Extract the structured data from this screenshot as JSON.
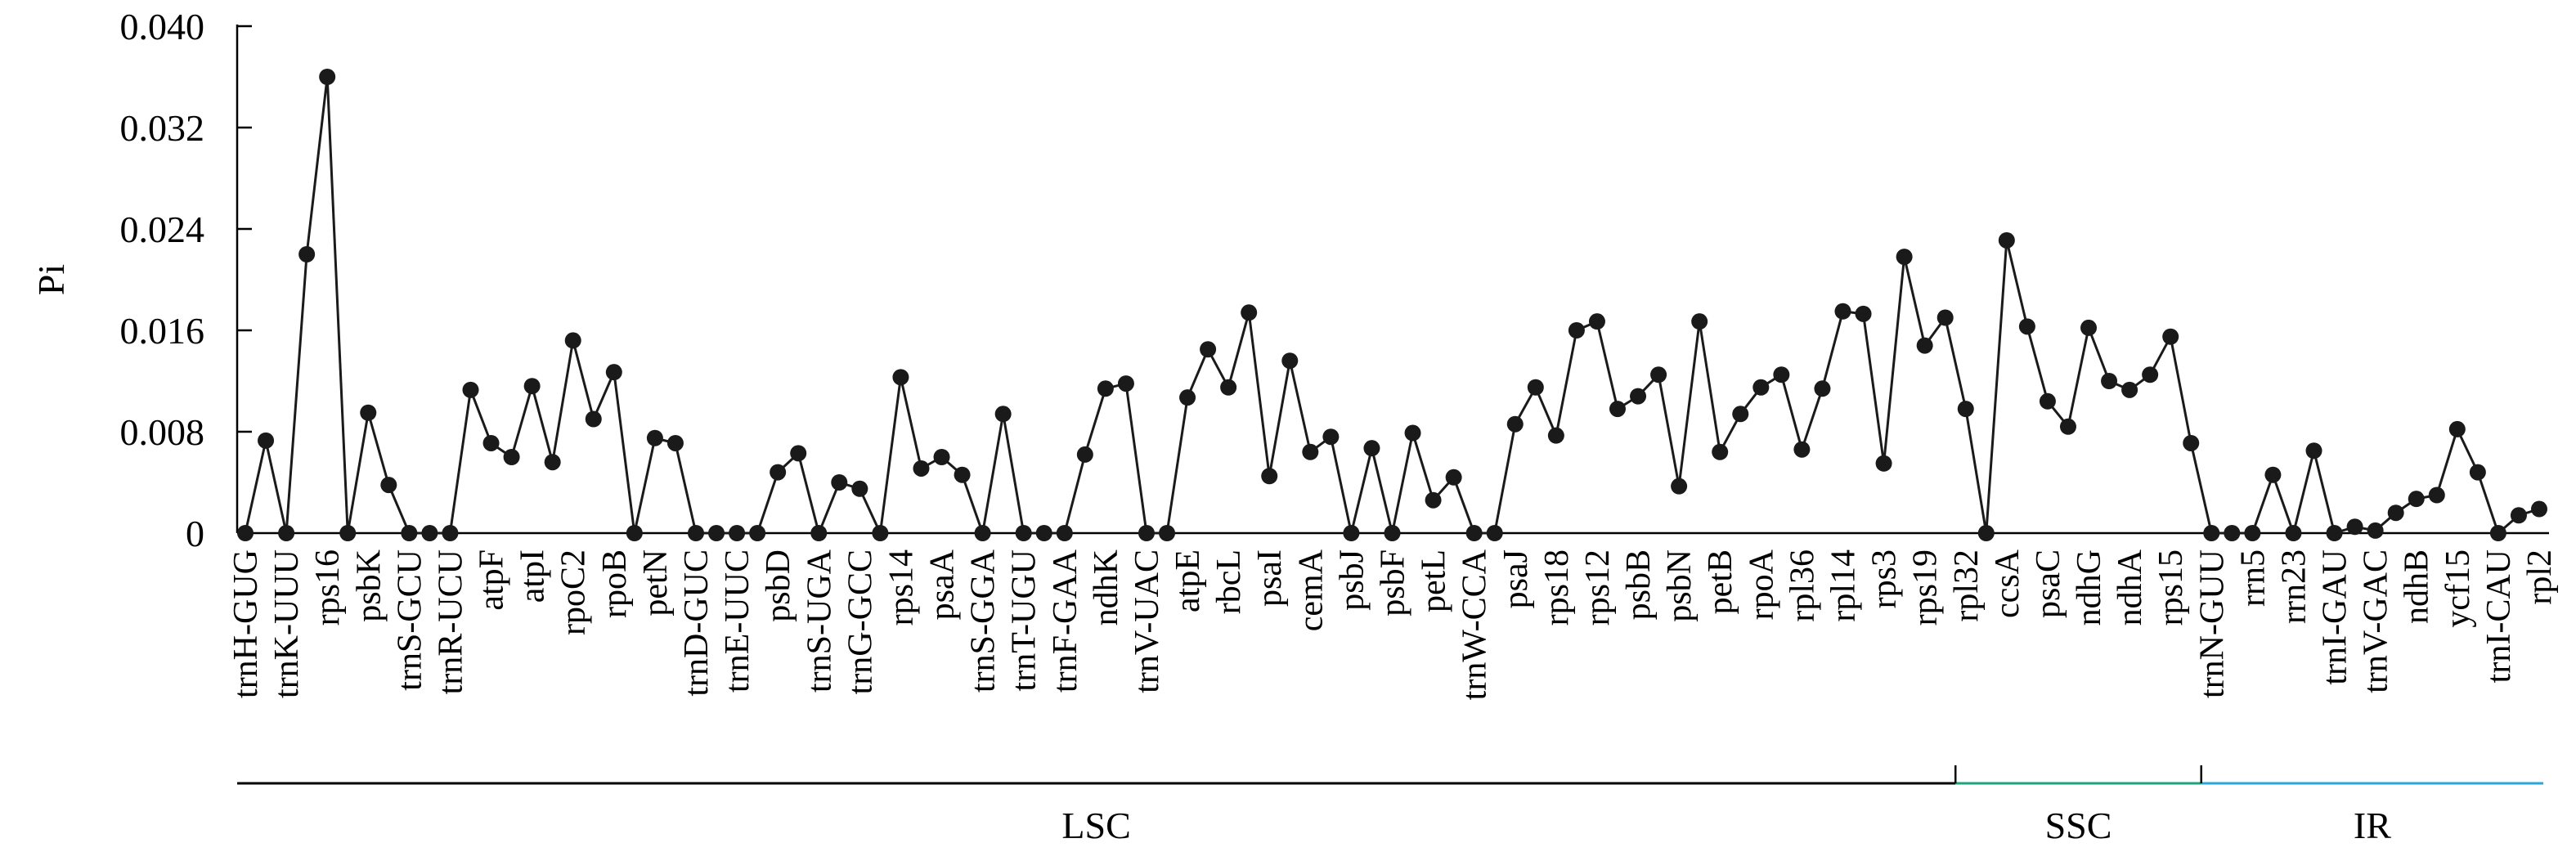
{
  "chart_data": {
    "type": "line",
    "title": "",
    "ylabel": "Pi",
    "xlabel": "",
    "ylim": [
      0,
      0.04
    ],
    "yticks": [
      "0",
      "0.008",
      "0.016",
      "0.024",
      "0.032",
      "0.040"
    ],
    "ytick_values": [
      0,
      0.008,
      0.016,
      0.024,
      0.032,
      0.04
    ],
    "grid": false,
    "legend": "none",
    "line_color": "#1a1a1a",
    "marker_color": "#1a1a1a",
    "categories": [
      "trnH-GUG",
      "",
      "trnK-UUU",
      "",
      "rps16",
      "",
      "psbK",
      "",
      "trnS-GCU",
      "",
      "trnR-UCU",
      "",
      "atpF",
      "",
      "atpI",
      "",
      "rpoC2",
      "",
      "rpoB",
      "",
      "petN",
      "",
      "trnD-GUC",
      "",
      "trnE-UUC",
      "",
      "psbD",
      "",
      "trnS-UGA",
      "",
      "trnG-GCC",
      "",
      "rps14",
      "",
      "psaA",
      "",
      "trnS-GGA",
      "",
      "trnT-UGU",
      "",
      "trnF-GAA",
      "",
      "ndhK",
      "",
      "trnV-UAC",
      "",
      "atpE",
      "",
      "rbcL",
      "",
      "psaI",
      "",
      "cemA",
      "",
      "psbJ",
      "",
      "psbF",
      "",
      "petL",
      "",
      "trnW-CCA",
      "",
      "psaJ",
      "",
      "rps18",
      "",
      "rps12",
      "",
      "psbB",
      "",
      "psbN",
      "",
      "petB",
      "",
      "rpoA",
      "",
      "rpl36",
      "",
      "rpl14",
      "",
      "rps3",
      "",
      "rps19",
      "",
      "rpl32",
      "",
      "ccsA",
      "",
      "psaC",
      "",
      "ndhG",
      "",
      "ndhA",
      "",
      "rps15",
      "",
      "trnN-GUU",
      "",
      "rrn5",
      "",
      "rrn23",
      "",
      "trnI-GAU",
      "",
      "trnV-GAC",
      "",
      "ndhB",
      "",
      "ycf15",
      "",
      "trnI-CAU",
      "",
      "rpl2"
    ],
    "values": [
      0,
      0.0073,
      0,
      0.022,
      0.036,
      0,
      0.0095,
      0.0038,
      0,
      0,
      0,
      0.0113,
      0.0071,
      0.006,
      0.0116,
      0.0056,
      0.0152,
      0.009,
      0.0127,
      0,
      0.0075,
      0.0071,
      0,
      0,
      0,
      0,
      0.0048,
      0.0063,
      0,
      0.004,
      0.0035,
      0,
      0.0123,
      0.0051,
      0.006,
      0.0046,
      0,
      0.0094,
      0,
      0,
      0,
      0.0062,
      0.0114,
      0.0118,
      0,
      0,
      0.0107,
      0.0145,
      0.0115,
      0.0174,
      0.0045,
      0.0136,
      0.0064,
      0.0076,
      0,
      0.0067,
      0,
      0.0079,
      0.0026,
      0.0044,
      0,
      0,
      0.0086,
      0.0115,
      0.0077,
      0.016,
      0.0167,
      0.0098,
      0.0108,
      0.0125,
      0.0037,
      0.0167,
      0.0064,
      0.0094,
      0.0115,
      0.0125,
      0.0066,
      0.0114,
      0.0175,
      0.0173,
      0.0055,
      0.0218,
      0.0148,
      0.017,
      0.0098,
      0,
      0.0231,
      0.0163,
      0.0104,
      0.0084,
      0.0162,
      0.012,
      0.0113,
      0.0125,
      0.0155,
      0.0071,
      0,
      0,
      0,
      0.0046,
      0,
      0.0065,
      0,
      0.0005,
      0.0002,
      0.0016,
      0.0027,
      0.003,
      0.0082,
      0.0048,
      0,
      0.0014,
      0.0019
    ],
    "regions": [
      {
        "label": "LSC",
        "color": "#000000",
        "from": 0,
        "to": 84
      },
      {
        "label": "SSC",
        "color": "#1fa37a",
        "from": 84,
        "to": 96
      },
      {
        "label": "IR",
        "color": "#2aa7d9",
        "from": 96,
        "to": 113
      }
    ]
  }
}
